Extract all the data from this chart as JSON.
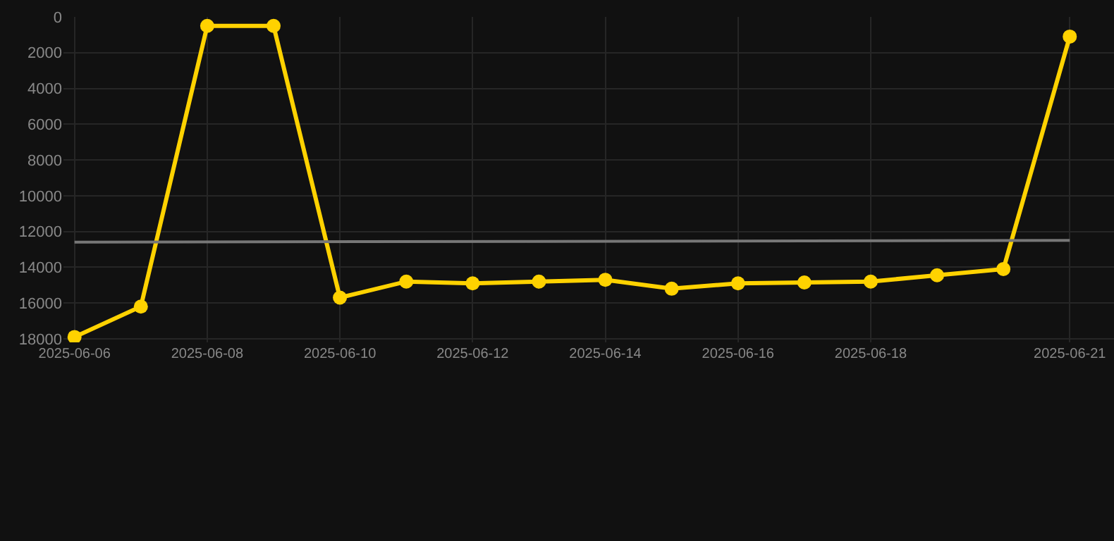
{
  "chart_data": {
    "type": "line",
    "x": [
      "2025-06-06",
      "2025-06-07",
      "2025-06-08",
      "2025-06-09",
      "2025-06-10",
      "2025-06-11",
      "2025-06-12",
      "2025-06-13",
      "2025-06-14",
      "2025-06-15",
      "2025-06-16",
      "2025-06-17",
      "2025-06-18",
      "2025-06-19",
      "2025-06-20",
      "2025-06-21"
    ],
    "series": [
      {
        "color": "#ffd200",
        "marker": "circle",
        "values": [
          17900,
          16200,
          500,
          500,
          15700,
          14800,
          14900,
          14800,
          14700,
          15200,
          14900,
          14850,
          14800,
          14450,
          14100,
          1100
        ]
      },
      {
        "color": "#777777",
        "marker": "none",
        "x": [
          "2025-06-06",
          "2025-06-21"
        ],
        "values": [
          12600,
          12500
        ]
      }
    ],
    "xlim": [
      "2025-06-05T20:00",
      "2025-06-21T16:00"
    ],
    "xticks": [
      "2025-06-06",
      "2025-06-08",
      "2025-06-10",
      "2025-06-12",
      "2025-06-14",
      "2025-06-16",
      "2025-06-18",
      "2025-06-21"
    ],
    "ylim": [
      18200,
      0
    ],
    "yticks": [
      0,
      2000,
      4000,
      6000,
      8000,
      10000,
      12000,
      14000,
      16000,
      18000
    ],
    "grid": true
  }
}
